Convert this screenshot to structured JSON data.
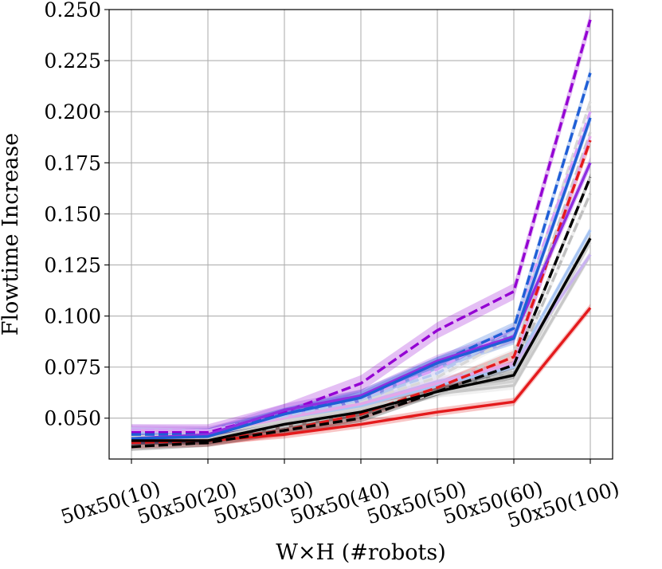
{
  "chart_data": {
    "type": "line",
    "title": "",
    "xlabel": "W×H (#robots)",
    "ylabel": "Flowtime Increase",
    "categories": [
      "50x50(10)",
      "50x50(20)",
      "50x50(30)",
      "50x50(40)",
      "50x50(50)",
      "50x50(60)",
      "50x50(100)"
    ],
    "ylim": [
      0.03,
      0.25
    ],
    "yticks": [
      "0.050",
      "0.075",
      "0.100",
      "0.125",
      "0.150",
      "0.175",
      "0.200",
      "0.225",
      "0.250"
    ],
    "grid": true,
    "legend": "none",
    "series": [
      {
        "color": "#c8c8c8",
        "style": "solid",
        "band": 0.002,
        "values": [
          0.04,
          0.04,
          0.048,
          0.054,
          0.062,
          0.066,
          0.13
        ]
      },
      {
        "color": "#d2d2d2",
        "style": "solid",
        "band": 0.002,
        "values": [
          0.041,
          0.042,
          0.049,
          0.055,
          0.063,
          0.068,
          0.136
        ]
      },
      {
        "color": "#c0c0c0",
        "style": "dashed",
        "band": 0.002,
        "values": [
          0.039,
          0.04,
          0.046,
          0.053,
          0.062,
          0.073,
          0.16
        ]
      },
      {
        "color": "#cccccc",
        "style": "dashed",
        "band": 0.002,
        "values": [
          0.042,
          0.043,
          0.05,
          0.056,
          0.066,
          0.082,
          0.19
        ]
      },
      {
        "color": "#d8d8d8",
        "style": "dashed",
        "band": 0.002,
        "values": [
          0.043,
          0.044,
          0.051,
          0.058,
          0.07,
          0.09,
          0.205
        ]
      },
      {
        "color": "#a7c4f2",
        "style": "solid",
        "band": 0.002,
        "values": [
          0.043,
          0.043,
          0.05,
          0.056,
          0.066,
          0.075,
          0.142
        ]
      },
      {
        "color": "#c9b2f0",
        "style": "solid",
        "band": 0.002,
        "values": [
          0.045,
          0.044,
          0.051,
          0.057,
          0.068,
          0.076,
          0.13
        ]
      },
      {
        "color": "#e3a6e8",
        "style": "solid",
        "band": 0.002,
        "values": [
          0.044,
          0.043,
          0.05,
          0.057,
          0.067,
          0.077,
          0.188
        ]
      },
      {
        "color": "#d8a0f8",
        "style": "dashed",
        "band": 0.002,
        "values": [
          0.044,
          0.044,
          0.052,
          0.06,
          0.074,
          0.094,
          0.2
        ]
      },
      {
        "color": "#b6c8f0",
        "style": "dashed",
        "band": 0.002,
        "values": [
          0.043,
          0.043,
          0.051,
          0.059,
          0.072,
          0.092,
          0.196
        ]
      },
      {
        "color": "#e41a1c",
        "style": "solid",
        "band": 0.002,
        "values": [
          0.039,
          0.039,
          0.042,
          0.047,
          0.053,
          0.058,
          0.104
        ]
      },
      {
        "color": "#e41a1c",
        "style": "dashed",
        "band": 0.003,
        "values": [
          0.038,
          0.039,
          0.044,
          0.052,
          0.065,
          0.08,
          0.186
        ]
      },
      {
        "color": "#9400d3",
        "style": "dashed",
        "band": 0.004,
        "values": [
          0.043,
          0.043,
          0.053,
          0.067,
          0.093,
          0.112,
          0.245
        ]
      },
      {
        "color": "#1f5fd6",
        "style": "dashed",
        "band": 0.003,
        "values": [
          0.042,
          0.042,
          0.052,
          0.061,
          0.077,
          0.094,
          0.219
        ]
      },
      {
        "color": "#8f2fe0",
        "style": "solid",
        "band": 0.003,
        "values": [
          0.04,
          0.042,
          0.054,
          0.061,
          0.078,
          0.09,
          0.175
        ]
      },
      {
        "color": "#1f5fd6",
        "style": "solid",
        "band": 0.003,
        "values": [
          0.04,
          0.041,
          0.052,
          0.06,
          0.077,
          0.089,
          0.197
        ]
      },
      {
        "color": "#000000",
        "style": "dashed",
        "band": 0.002,
        "values": [
          0.036,
          0.038,
          0.044,
          0.05,
          0.063,
          0.076,
          0.168
        ]
      },
      {
        "color": "#000000",
        "style": "solid",
        "band": 0.002,
        "values": [
          0.039,
          0.039,
          0.047,
          0.053,
          0.063,
          0.071,
          0.138
        ]
      }
    ]
  }
}
